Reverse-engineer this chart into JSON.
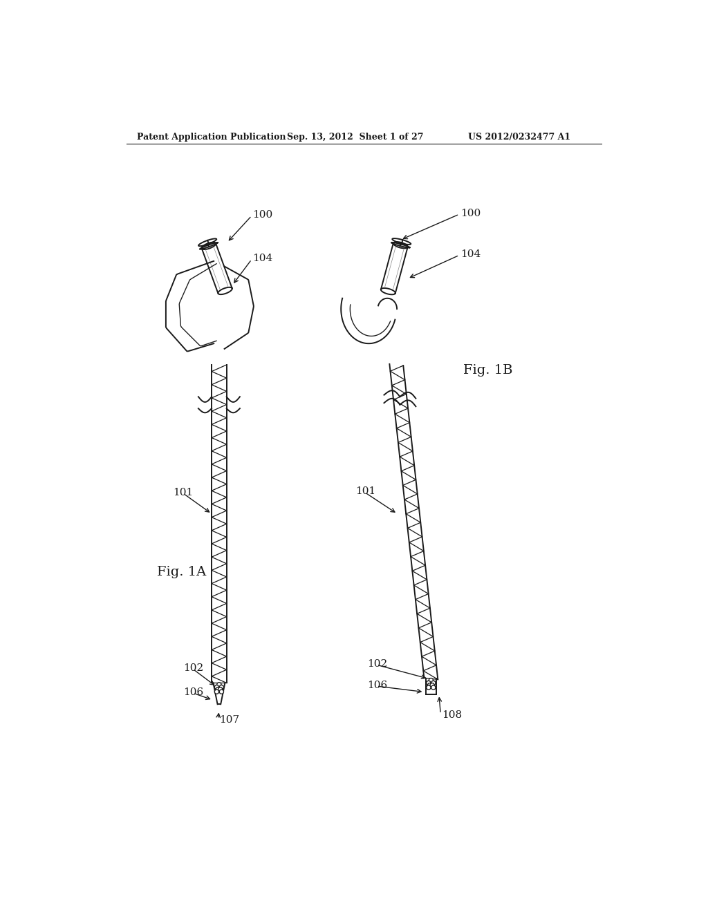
{
  "header_left": "Patent Application Publication",
  "header_center": "Sep. 13, 2012  Sheet 1 of 27",
  "header_right": "US 2012/0232477 A1",
  "fig1a_label": "Fig. 1A",
  "fig1b_label": "Fig. 1B",
  "labels": {
    "100_left": "100",
    "104_left": "104",
    "101_left": "101",
    "102_left": "102",
    "106_left": "106",
    "107_left": "107",
    "100_right": "100",
    "104_right": "104",
    "101_right": "101",
    "102_right": "102",
    "106_right": "106",
    "108_right": "108"
  },
  "bg_color": "#ffffff",
  "line_color": "#1a1a1a",
  "line_width": 1.4,
  "header_fontsize": 9,
  "label_fontsize": 11,
  "fig_label_fontsize": 14
}
